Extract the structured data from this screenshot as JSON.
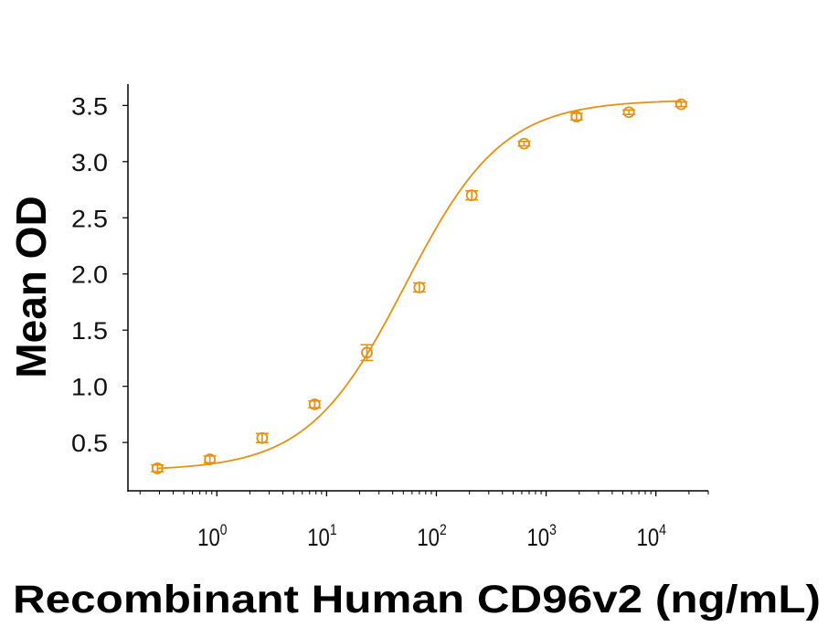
{
  "chart_data": {
    "type": "scatter",
    "title": "",
    "xlabel": "Recombinant Human CD96v2 (ng/mL)",
    "ylabel": "Mean OD",
    "xscale": "log",
    "xlim": [
      0.155,
      30000
    ],
    "ylim": [
      0.07,
      3.69
    ],
    "x_ticks": [
      {
        "value": 1,
        "base": "10",
        "exp": "0"
      },
      {
        "value": 10,
        "base": "10",
        "exp": "1"
      },
      {
        "value": 100,
        "base": "10",
        "exp": "2"
      },
      {
        "value": 1000,
        "base": "10",
        "exp": "3"
      },
      {
        "value": 10000,
        "base": "10",
        "exp": "4"
      }
    ],
    "y_ticks": [
      "0.5",
      "1.0",
      "1.5",
      "2.0",
      "2.5",
      "3.0",
      "3.5"
    ],
    "grid": false,
    "legend": "none",
    "fit": "4-parameter logistic curve",
    "color": "#E8900F",
    "series": [
      {
        "x": [
          0.288,
          0.864,
          2.59,
          7.78,
          23.3,
          70,
          210,
          630,
          1890,
          5670,
          17000
        ],
        "y": [
          0.27,
          0.35,
          0.54,
          0.84,
          1.3,
          1.88,
          2.7,
          3.16,
          3.4,
          3.44,
          3.51
        ],
        "error": [
          0.03,
          0.03,
          0.04,
          0.03,
          0.07,
          0.04,
          0.04,
          0.02,
          0.03,
          0.02,
          0.02
        ]
      }
    ]
  }
}
